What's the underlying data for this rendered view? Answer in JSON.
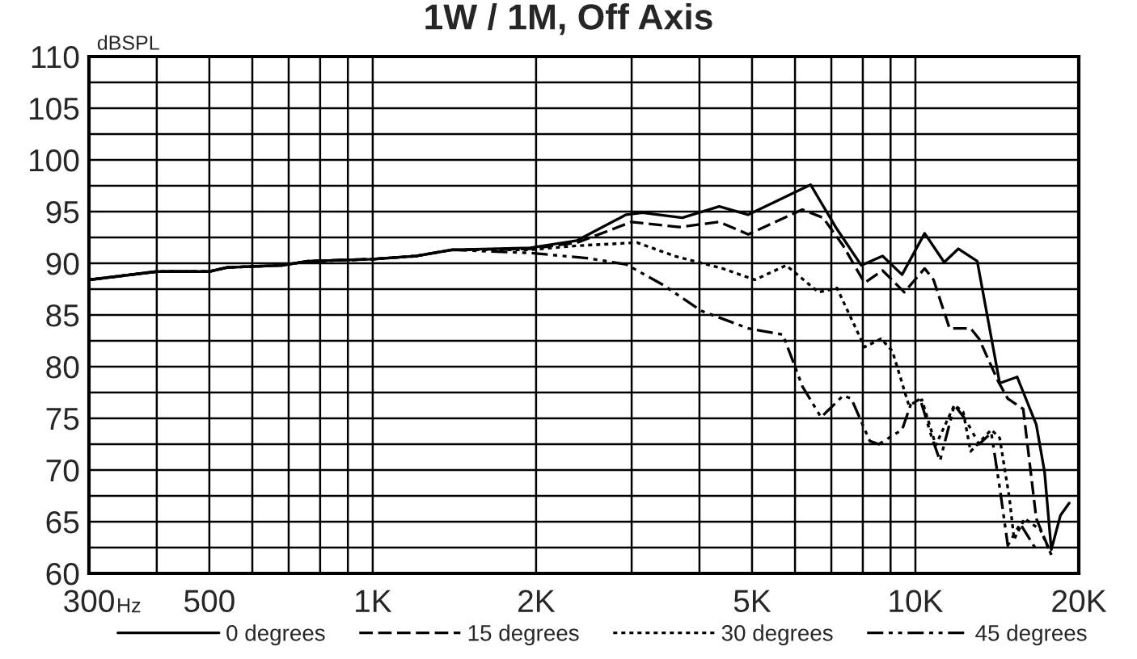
{
  "chart_data": {
    "type": "line",
    "title": "1W / 1M, Off Axis",
    "xlabel": "Hz",
    "ylabel": "dBSPL",
    "log": "x",
    "grid": true,
    "legend": "bottom",
    "marker": "none",
    "xlim": [
      300,
      20000
    ],
    "xticks": [
      {
        "value": 300,
        "label": "300"
      },
      {
        "value": 400,
        "label": null
      },
      {
        "value": 500,
        "label": "500"
      },
      {
        "value": 600,
        "label": null
      },
      {
        "value": 700,
        "label": null
      },
      {
        "value": 800,
        "label": null
      },
      {
        "value": 900,
        "label": null
      },
      {
        "value": 1000,
        "label": "1K"
      },
      {
        "value": 2000,
        "label": "2K"
      },
      {
        "value": 3000,
        "label": null
      },
      {
        "value": 4000,
        "label": null
      },
      {
        "value": 5000,
        "label": "5K"
      },
      {
        "value": 6000,
        "label": null
      },
      {
        "value": 7000,
        "label": null
      },
      {
        "value": 8000,
        "label": null
      },
      {
        "value": 9000,
        "label": null
      },
      {
        "value": 10000,
        "label": "10K"
      },
      {
        "value": 20000,
        "label": "20K"
      }
    ],
    "ylim": [
      60,
      110
    ],
    "yticks": [
      60,
      {
        "value": 62.5,
        "label": null
      },
      65,
      {
        "value": 67.5,
        "label": null
      },
      70,
      {
        "value": 72.5,
        "label": null
      },
      75,
      {
        "value": 77.5,
        "label": null
      },
      80,
      {
        "value": 82.5,
        "label": null
      },
      85,
      {
        "value": 87.5,
        "label": null
      },
      90,
      {
        "value": 92.5,
        "label": null
      },
      95,
      {
        "value": 97.5,
        "label": null
      },
      100,
      {
        "value": 102.5,
        "label": null
      },
      105,
      {
        "value": 107.5,
        "label": null
      },
      110
    ],
    "series": [
      {
        "name": "0 degrees",
        "color": "#000000",
        "line_style": "solid",
        "x": [
          300,
          400,
          500,
          540,
          680,
          760,
          1000,
          1200,
          1400,
          1950,
          2380,
          2930,
          3140,
          3720,
          4350,
          4920,
          6410,
          7130,
          7950,
          8700,
          9450,
          10400,
          11300,
          12000,
          13000,
          14300,
          15400,
          16700,
          17300,
          17800,
          18500,
          19200
        ],
        "values": [
          88.4,
          89.2,
          89.2,
          89.6,
          89.8,
          90.2,
          90.4,
          90.7,
          91.3,
          91.5,
          92.2,
          94.7,
          94.9,
          94.4,
          95.5,
          94.7,
          97.6,
          93.5,
          89.8,
          90.7,
          88.9,
          92.9,
          90.1,
          91.4,
          90.2,
          78.4,
          79.0,
          74.4,
          69.8,
          62.3,
          65.6,
          66.8
        ]
      },
      {
        "name": "15 degrees",
        "color": "#000000",
        "line_style": "dashed",
        "x": [
          300,
          400,
          500,
          540,
          680,
          760,
          1000,
          1200,
          1400,
          1950,
          2380,
          3000,
          3670,
          4350,
          4920,
          6190,
          6760,
          7360,
          8060,
          8700,
          9540,
          10400,
          10800,
          11560,
          12640,
          13100,
          14200,
          14800,
          15800,
          16700,
          17800
        ],
        "values": [
          88.4,
          89.2,
          89.2,
          89.6,
          89.8,
          90.2,
          90.4,
          90.7,
          91.3,
          91.4,
          92.0,
          94.0,
          93.5,
          94.0,
          92.8,
          95.2,
          94.4,
          91.7,
          88.1,
          89.3,
          87.2,
          89.5,
          88.4,
          83.7,
          83.7,
          82.7,
          78.6,
          76.9,
          75.9,
          65.3,
          61.8
        ]
      },
      {
        "name": "30 degrees",
        "color": "#000000",
        "line_style": "dotted",
        "x": [
          300,
          400,
          500,
          540,
          680,
          760,
          1000,
          1200,
          1400,
          1950,
          2380,
          3070,
          3600,
          4410,
          5060,
          5780,
          6630,
          7170,
          8060,
          8640,
          9070,
          9720,
          10280,
          10900,
          11800,
          12250,
          12640,
          13800,
          14300,
          14900,
          15200,
          15900,
          17000,
          17800
        ],
        "values": [
          88.4,
          89.2,
          89.2,
          89.6,
          89.8,
          90.2,
          90.4,
          90.7,
          91.3,
          91.3,
          91.7,
          92.0,
          90.7,
          89.5,
          88.4,
          89.8,
          87.2,
          87.6,
          81.9,
          82.7,
          81.5,
          76.3,
          76.8,
          72.4,
          76.3,
          75.6,
          71.8,
          73.9,
          73.1,
          67.3,
          63.3,
          65.3,
          64.2,
          61.8
        ]
      },
      {
        "name": "45 degrees",
        "color": "#000000",
        "line_style": "dashdot",
        "x": [
          300,
          400,
          500,
          540,
          680,
          760,
          1000,
          1200,
          1400,
          1950,
          2480,
          2930,
          3430,
          4030,
          4920,
          5700,
          6190,
          6700,
          7360,
          7620,
          8240,
          8560,
          9450,
          9800,
          10200,
          10700,
          11100,
          11800,
          12400,
          13100,
          13800,
          14300,
          14800,
          15600,
          16700
        ],
        "values": [
          88.4,
          89.2,
          89.2,
          89.6,
          89.8,
          90.2,
          90.4,
          90.7,
          91.3,
          91.0,
          90.5,
          89.9,
          87.9,
          85.4,
          83.7,
          83.1,
          78.1,
          75.1,
          77.2,
          76.9,
          72.8,
          72.5,
          73.9,
          76.3,
          76.9,
          73.3,
          70.9,
          76.3,
          74.8,
          72.5,
          73.6,
          68.3,
          62.7,
          64.8,
          62.3
        ]
      }
    ]
  }
}
